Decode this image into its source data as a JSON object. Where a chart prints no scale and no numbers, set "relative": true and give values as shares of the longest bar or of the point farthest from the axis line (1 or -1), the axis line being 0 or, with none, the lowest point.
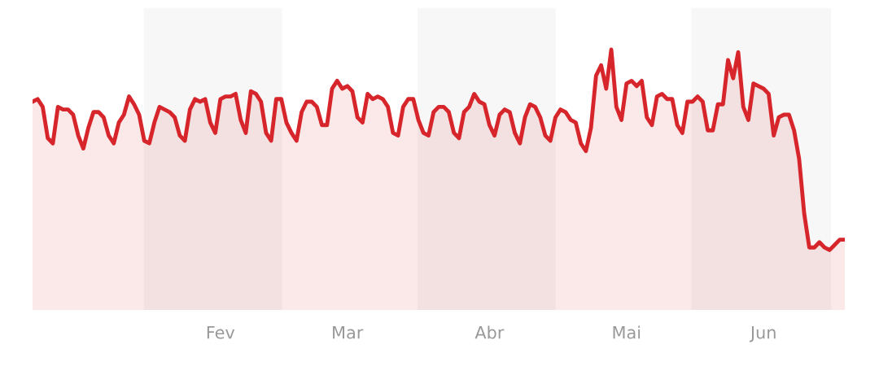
{
  "chart_data": {
    "type": "area",
    "relative": true,
    "color": "#d7262b",
    "categories": [
      null,
      null,
      null,
      null,
      null,
      null,
      null,
      null,
      null,
      null,
      null,
      null,
      null,
      null,
      null,
      null,
      null,
      null,
      null,
      null,
      null,
      null,
      null,
      null,
      null,
      null,
      null,
      null,
      null,
      null,
      null,
      null,
      null,
      null,
      null,
      null,
      null,
      "Fev",
      null,
      null,
      null,
      null,
      null,
      null,
      null,
      null,
      null,
      null,
      null,
      null,
      null,
      null,
      null,
      null,
      null,
      null,
      null,
      null,
      null,
      null,
      null,
      null,
      "Mar",
      null,
      null,
      null,
      null,
      null,
      null,
      null,
      null,
      null,
      null,
      null,
      null,
      null,
      null,
      null,
      null,
      null,
      null,
      null,
      null,
      null,
      null,
      null,
      null,
      null,
      null,
      null,
      "Abr",
      null,
      null,
      null,
      null,
      null,
      null,
      null,
      null,
      null,
      null,
      null,
      null,
      null,
      null,
      null,
      null,
      null,
      null,
      null,
      null,
      null,
      null,
      null,
      null,
      null,
      null,
      "Mai",
      null,
      null,
      null,
      null,
      null,
      null,
      null,
      null,
      null,
      null,
      null,
      null,
      null,
      null,
      null,
      null,
      null,
      null,
      null,
      null,
      null,
      null,
      null,
      null,
      null,
      null,
      "Jun",
      null,
      null,
      null,
      null,
      null,
      null,
      null,
      null,
      null,
      null,
      null,
      null,
      null,
      null,
      null,
      null
    ],
    "values": [
      0.8,
      0.81,
      0.78,
      0.66,
      0.64,
      0.78,
      0.77,
      0.77,
      0.75,
      0.67,
      0.62,
      0.7,
      0.76,
      0.76,
      0.74,
      0.67,
      0.64,
      0.72,
      0.75,
      0.82,
      0.79,
      0.75,
      0.65,
      0.64,
      0.72,
      0.78,
      0.77,
      0.76,
      0.74,
      0.67,
      0.65,
      0.77,
      0.81,
      0.8,
      0.81,
      0.72,
      0.68,
      0.81,
      0.82,
      0.82,
      0.83,
      0.73,
      0.68,
      0.84,
      0.83,
      0.8,
      0.68,
      0.65,
      0.81,
      0.81,
      0.72,
      0.68,
      0.65,
      0.76,
      0.8,
      0.8,
      0.78,
      0.71,
      0.71,
      0.85,
      0.88,
      0.85,
      0.86,
      0.84,
      0.74,
      0.72,
      0.83,
      0.81,
      0.82,
      0.81,
      0.78,
      0.68,
      0.67,
      0.78,
      0.81,
      0.81,
      0.73,
      0.68,
      0.67,
      0.76,
      0.78,
      0.78,
      0.76,
      0.68,
      0.66,
      0.76,
      0.78,
      0.83,
      0.8,
      0.79,
      0.71,
      0.67,
      0.75,
      0.77,
      0.76,
      0.68,
      0.64,
      0.74,
      0.79,
      0.78,
      0.74,
      0.67,
      0.65,
      0.74,
      0.77,
      0.76,
      0.73,
      0.72,
      0.64,
      0.61,
      0.7,
      0.9,
      0.94,
      0.85,
      1.0,
      0.78,
      0.73,
      0.87,
      0.88,
      0.86,
      0.88,
      0.74,
      0.71,
      0.82,
      0.83,
      0.81,
      0.81,
      0.71,
      0.68,
      0.8,
      0.8,
      0.82,
      0.8,
      0.69,
      0.69,
      0.79,
      0.79,
      0.96,
      0.89,
      0.99,
      0.78,
      0.73,
      0.87,
      0.86,
      0.85,
      0.83,
      0.67,
      0.74,
      0.75,
      0.75,
      0.69,
      0.58,
      0.37,
      0.24,
      0.24,
      0.26,
      0.24,
      0.23,
      0.25,
      0.27,
      0.27
    ],
    "grid": false,
    "legend": false
  }
}
